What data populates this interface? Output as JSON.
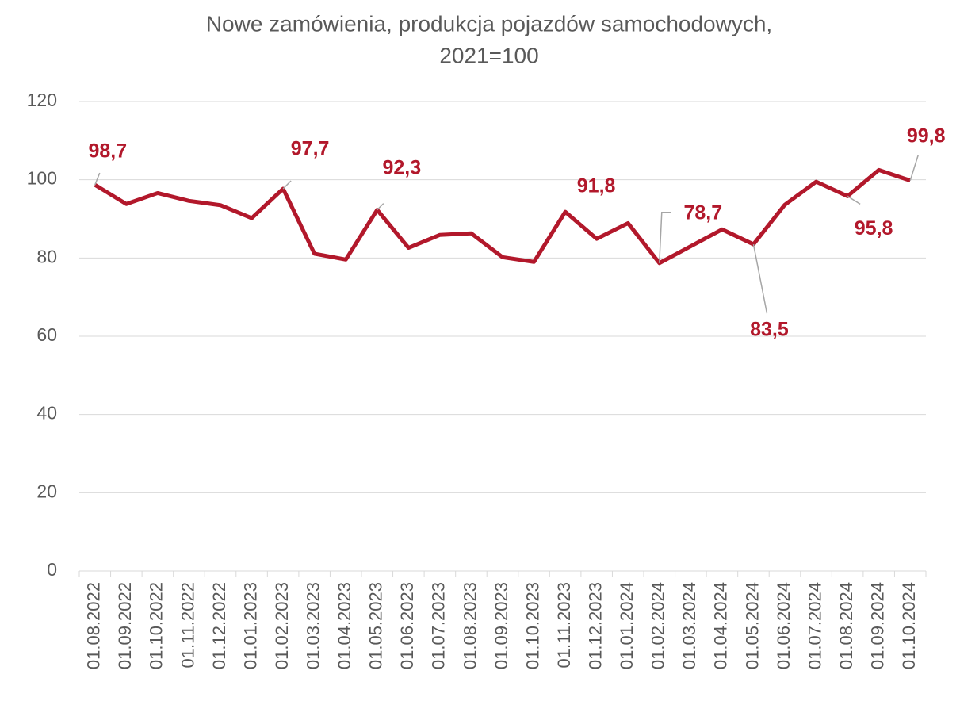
{
  "chart_data": {
    "type": "line",
    "title": [
      "Nowe zamówienia, produkcja pojazdów samochodowych,",
      "2021=100"
    ],
    "categories": [
      "01.08.2022",
      "01.09.2022",
      "01.10.2022",
      "01.11.2022",
      "01.12.2022",
      "01.01.2023",
      "01.02.2023",
      "01.03.2023",
      "01.04.2023",
      "01.05.2023",
      "01.06.2023",
      "01.07.2023",
      "01.08.2023",
      "01.09.2023",
      "01.10.2023",
      "01.11.2023",
      "01.12.2023",
      "01.01.2024",
      "01.02.2024",
      "01.03.2024",
      "01.04.2024",
      "01.05.2024",
      "01.06.2024",
      "01.07.2024",
      "01.08.2024",
      "01.09.2024",
      "01.10.2024"
    ],
    "series": [
      {
        "color": "#b2182b",
        "values": [
          98.7,
          93.8,
          96.6,
          94.6,
          93.5,
          90.2,
          97.7,
          81.1,
          79.6,
          92.3,
          82.6,
          85.9,
          86.3,
          80.2,
          79.0,
          91.8,
          84.9,
          88.9,
          78.7,
          83.0,
          87.3,
          83.5,
          93.6,
          99.5,
          95.8,
          102.5,
          99.8
        ],
        "value_labels": [
          "98,7",
          null,
          null,
          null,
          null,
          null,
          "97,7",
          null,
          null,
          "92,3",
          null,
          null,
          null,
          null,
          null,
          "91,8",
          null,
          null,
          "78,7",
          null,
          null,
          "83,5",
          null,
          null,
          "95,8",
          null,
          "99,8"
        ]
      }
    ],
    "ylim": [
      0,
      120
    ],
    "yticks": [
      0,
      20,
      40,
      60,
      80,
      100,
      120
    ],
    "grid": true
  }
}
